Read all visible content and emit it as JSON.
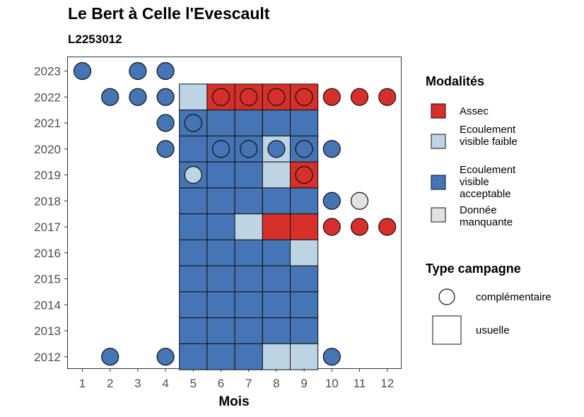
{
  "chart_data": {
    "type": "heatmap",
    "title": "Le Bert à Celle l'Evescault",
    "subtitle": "L2253012",
    "xlabel": "Mois",
    "ylabel": "",
    "x_ticks": [
      "1",
      "2",
      "3",
      "4",
      "5",
      "6",
      "7",
      "8",
      "9",
      "10",
      "11",
      "12"
    ],
    "y_ticks": [
      "2023",
      "2022",
      "2021",
      "2020",
      "2019",
      "2018",
      "2017",
      "2016",
      "2015",
      "2014",
      "2013",
      "2012"
    ],
    "modalities": [
      {
        "key": "assec",
        "label": "Assec",
        "color": "#D7302B"
      },
      {
        "key": "faible",
        "label": "Ecoulement visible faible",
        "color": "#BDD4E5"
      },
      {
        "key": "acceptable",
        "label": "Ecoulement visible acceptable",
        "color": "#4575B4"
      },
      {
        "key": "manquante",
        "label": "Donnée manquante",
        "color": "#E1E1E1"
      }
    ],
    "campaign_types": [
      {
        "key": "complementaire",
        "label": "complémentaire",
        "shape": "circle"
      },
      {
        "key": "usuelle",
        "label": "usuelle",
        "shape": "square"
      }
    ],
    "usuelle": [
      {
        "year": 2022,
        "values": [
          "faible",
          "assec",
          "assec",
          "assec",
          "assec"
        ]
      },
      {
        "year": 2021,
        "values": [
          "acceptable",
          "acceptable",
          "acceptable",
          "acceptable",
          "acceptable"
        ]
      },
      {
        "year": 2020,
        "values": [
          "acceptable",
          "acceptable",
          "acceptable",
          "faible",
          "acceptable"
        ]
      },
      {
        "year": 2019,
        "values": [
          "acceptable",
          "acceptable",
          "acceptable",
          "faible",
          "assec"
        ]
      },
      {
        "year": 2018,
        "values": [
          "acceptable",
          "acceptable",
          "acceptable",
          "acceptable",
          "acceptable"
        ]
      },
      {
        "year": 2017,
        "values": [
          "acceptable",
          "acceptable",
          "faible",
          "assec",
          "assec"
        ]
      },
      {
        "year": 2016,
        "values": [
          "acceptable",
          "acceptable",
          "acceptable",
          "acceptable",
          "faible"
        ]
      },
      {
        "year": 2015,
        "values": [
          "acceptable",
          "acceptable",
          "acceptable",
          "acceptable",
          "acceptable"
        ]
      },
      {
        "year": 2014,
        "values": [
          "acceptable",
          "acceptable",
          "acceptable",
          "acceptable",
          "acceptable"
        ]
      },
      {
        "year": 2013,
        "values": [
          "acceptable",
          "acceptable",
          "acceptable",
          "acceptable",
          "acceptable"
        ]
      },
      {
        "year": 2012,
        "values": [
          "acceptable",
          "acceptable",
          "acceptable",
          "faible",
          "faible"
        ]
      }
    ],
    "usuelle_months": [
      5,
      6,
      7,
      8,
      9
    ],
    "complementaire": [
      {
        "year": 2023,
        "month": 1,
        "value": "acceptable"
      },
      {
        "year": 2023,
        "month": 3,
        "value": "acceptable"
      },
      {
        "year": 2023,
        "month": 4,
        "value": "acceptable"
      },
      {
        "year": 2022,
        "month": 2,
        "value": "acceptable"
      },
      {
        "year": 2022,
        "month": 3,
        "value": "acceptable"
      },
      {
        "year": 2022,
        "month": 4,
        "value": "acceptable"
      },
      {
        "year": 2022,
        "month": 6,
        "value": "assec"
      },
      {
        "year": 2022,
        "month": 7,
        "value": "assec"
      },
      {
        "year": 2022,
        "month": 8,
        "value": "assec"
      },
      {
        "year": 2022,
        "month": 9,
        "value": "assec"
      },
      {
        "year": 2022,
        "month": 10,
        "value": "assec"
      },
      {
        "year": 2022,
        "month": 11,
        "value": "assec"
      },
      {
        "year": 2022,
        "month": 12,
        "value": "assec"
      },
      {
        "year": 2021,
        "month": 4,
        "value": "acceptable"
      },
      {
        "year": 2021,
        "month": 5,
        "value": "acceptable"
      },
      {
        "year": 2020,
        "month": 4,
        "value": "acceptable"
      },
      {
        "year": 2020,
        "month": 6,
        "value": "acceptable"
      },
      {
        "year": 2020,
        "month": 7,
        "value": "acceptable"
      },
      {
        "year": 2020,
        "month": 8,
        "value": "acceptable"
      },
      {
        "year": 2020,
        "month": 9,
        "value": "acceptable"
      },
      {
        "year": 2020,
        "month": 10,
        "value": "acceptable"
      },
      {
        "year": 2019,
        "month": 5,
        "value": "faible"
      },
      {
        "year": 2019,
        "month": 9,
        "value": "assec"
      },
      {
        "year": 2018,
        "month": 10,
        "value": "acceptable"
      },
      {
        "year": 2018,
        "month": 11,
        "value": "manquante"
      },
      {
        "year": 2017,
        "month": 10,
        "value": "assec"
      },
      {
        "year": 2017,
        "month": 11,
        "value": "assec"
      },
      {
        "year": 2017,
        "month": 12,
        "value": "assec"
      },
      {
        "year": 2012,
        "month": 2,
        "value": "acceptable"
      },
      {
        "year": 2012,
        "month": 4,
        "value": "acceptable"
      },
      {
        "year": 2012,
        "month": 10,
        "value": "acceptable"
      }
    ],
    "legend": {
      "modalities_title": "Modalités",
      "campaign_title": "Type campagne",
      "position": "right"
    },
    "grid": false
  }
}
